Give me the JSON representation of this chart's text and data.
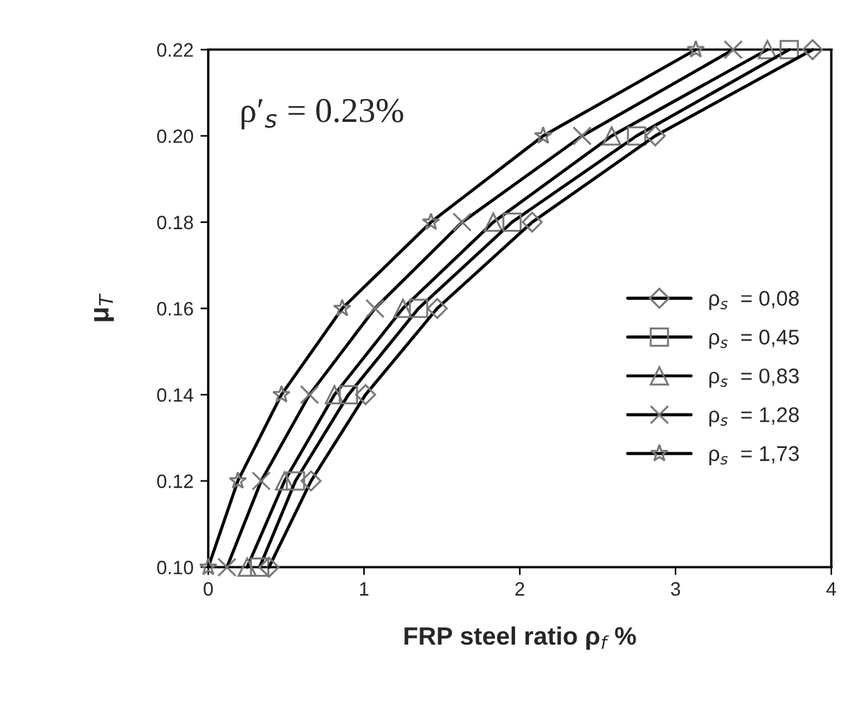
{
  "chart_data": {
    "type": "line",
    "xlabel": "FRP steel ratio ρ$_{f}$ %",
    "ylabel": "μ$_{T}$",
    "annotations": [
      "ρ′$_{s}$ = 0.23%"
    ],
    "xlim": [
      0,
      4
    ],
    "xticks": [
      0,
      1,
      2,
      3,
      4
    ],
    "ylim": [
      0.1,
      0.22
    ],
    "yticks": [
      {
        "value": 0.1,
        "label": "0.10"
      },
      {
        "value": 0.12,
        "label": "0.12"
      },
      {
        "value": 0.14,
        "label": "0.14"
      },
      {
        "value": 0.16,
        "label": "0.16"
      },
      {
        "value": 0.18,
        "label": "0.18"
      },
      {
        "value": 0.2,
        "label": "0.20"
      },
      {
        "value": 0.22,
        "label": "0.22"
      }
    ],
    "grid": false,
    "legend": "lower right",
    "line_style": "solid",
    "series": [
      {
        "name": "ρ$_{s}$  = 0,08",
        "color": "#000000",
        "marker": "diamond",
        "x": [
          0.39,
          0.66,
          1.01,
          1.47,
          2.08,
          2.87,
          3.88
        ],
        "values": [
          0.1,
          0.12,
          0.14,
          0.16,
          0.18,
          0.2,
          0.22
        ]
      },
      {
        "name": "ρ$_{s}$  = 0,45",
        "color": "#000000",
        "marker": "square",
        "x": [
          0.33,
          0.56,
          0.9,
          1.35,
          1.95,
          2.75,
          3.73
        ],
        "values": [
          0.1,
          0.12,
          0.14,
          0.16,
          0.18,
          0.2,
          0.22
        ]
      },
      {
        "name": "ρ$_{s}$  = 0,83",
        "color": "#000000",
        "marker": "triangle",
        "x": [
          0.25,
          0.49,
          0.81,
          1.25,
          1.83,
          2.59,
          3.59
        ],
        "values": [
          0.1,
          0.12,
          0.14,
          0.16,
          0.18,
          0.2,
          0.22
        ]
      },
      {
        "name": "ρ$_{s}$  = 1,28",
        "color": "#000000",
        "marker": "cross",
        "x": [
          0.12,
          0.34,
          0.65,
          1.07,
          1.63,
          2.4,
          3.37
        ],
        "values": [
          0.1,
          0.12,
          0.14,
          0.16,
          0.18,
          0.2,
          0.22
        ]
      },
      {
        "name": "ρ$_{s}$  = 1,73",
        "color": "#000000",
        "marker": "star",
        "x": [
          0.0,
          0.19,
          0.47,
          0.86,
          1.43,
          2.15,
          3.13
        ],
        "values": [
          0.1,
          0.12,
          0.14,
          0.16,
          0.18,
          0.2,
          0.22
        ]
      }
    ]
  }
}
